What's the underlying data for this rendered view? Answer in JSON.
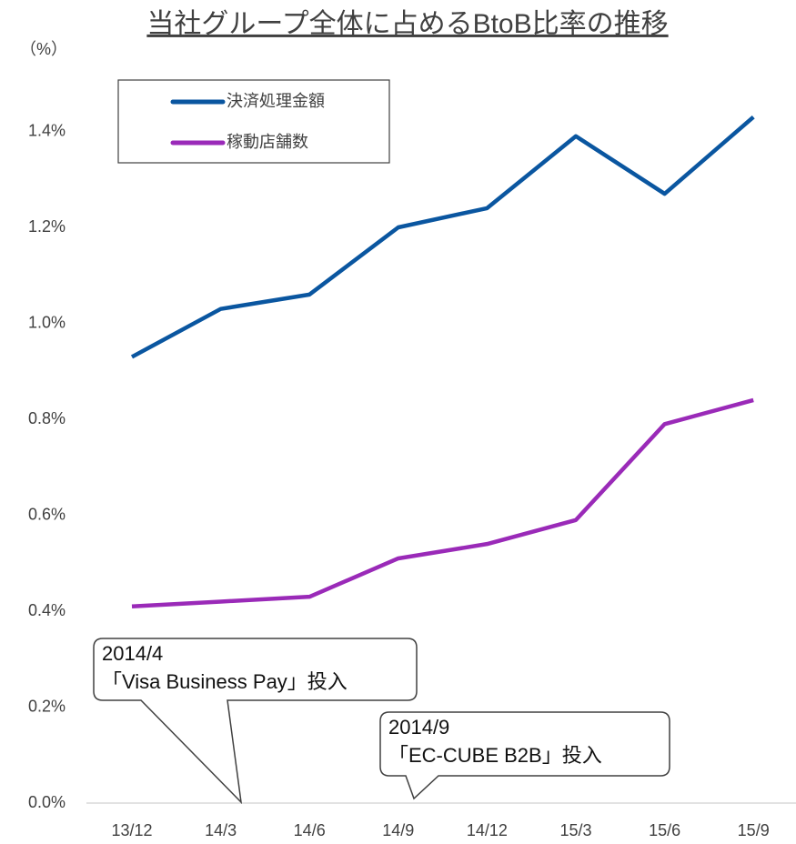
{
  "chart_data": {
    "type": "line",
    "title": "当社グループ全体に占めるBtoB比率の推移",
    "y_axis_label": "（%）",
    "categories": [
      "13/12",
      "14/3",
      "14/6",
      "14/9",
      "14/12",
      "15/3",
      "15/6",
      "15/9"
    ],
    "series": [
      {
        "name": "決済処理金額",
        "color": "#0a56a0",
        "values": [
          0.93,
          1.03,
          1.06,
          1.2,
          1.24,
          1.39,
          1.27,
          1.43
        ]
      },
      {
        "name": "稼動店舗数",
        "color": "#9a2ab8",
        "values": [
          0.41,
          0.42,
          0.43,
          0.51,
          0.54,
          0.59,
          0.79,
          0.84
        ]
      }
    ],
    "ylim": [
      0,
      1.6
    ],
    "yticks": [
      {
        "value": 0,
        "label": "0.0%"
      },
      {
        "value": 0.2,
        "label": "0.2%"
      },
      {
        "value": 0.4,
        "label": "0.4%"
      },
      {
        "value": 0.6,
        "label": "0.6%"
      },
      {
        "value": 0.8,
        "label": "0.8%"
      },
      {
        "value": 1,
        "label": "1.0%"
      },
      {
        "value": 1.2,
        "label": "1.2%"
      },
      {
        "value": 1.4,
        "label": "1.4%"
      }
    ],
    "legend_position": "upper left",
    "annotations": [
      {
        "lines": [
          "2014/4",
          "「Visa Business Pay」投入"
        ]
      },
      {
        "lines": [
          "2014/9",
          "「EC-CUBE B2B」投入"
        ]
      }
    ]
  }
}
